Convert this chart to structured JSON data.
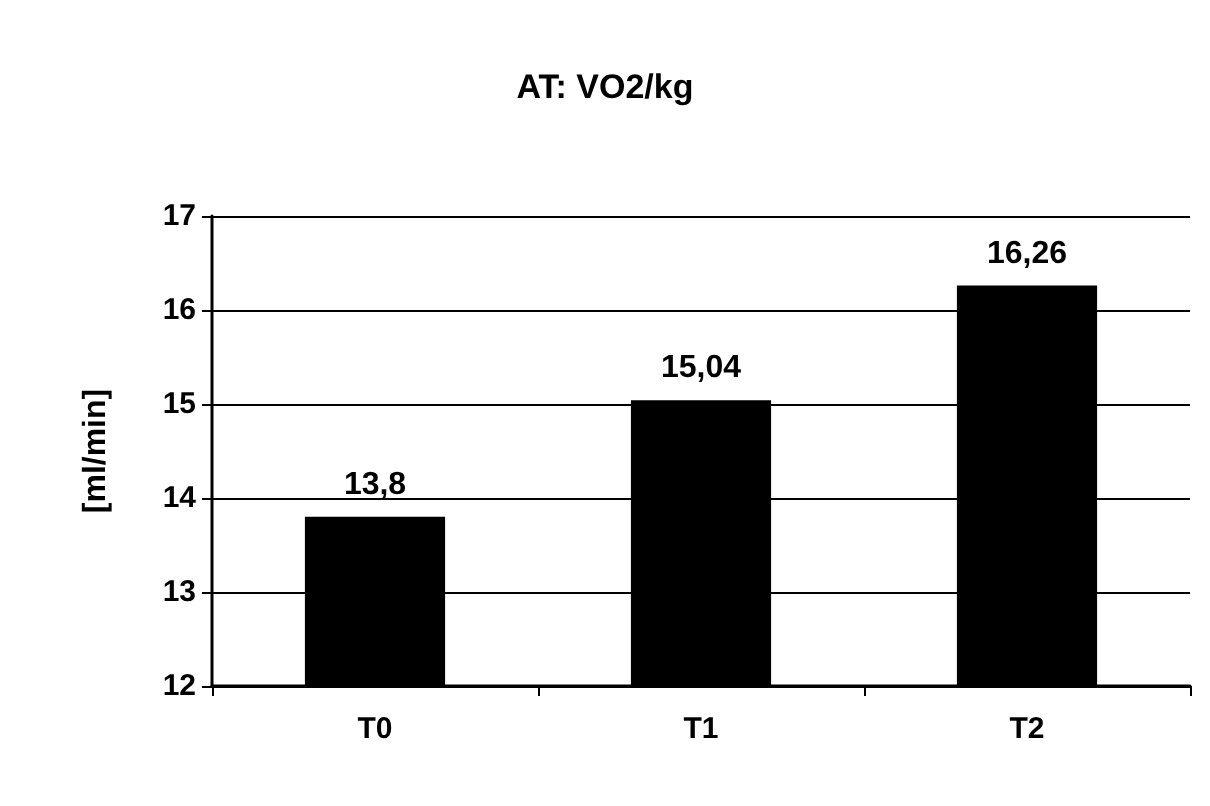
{
  "chart_data": {
    "type": "bar",
    "title": "AT: VO2/kg",
    "ylabel": "[ml/min]",
    "categories": [
      "T0",
      "T1",
      "T2"
    ],
    "values": [
      13.8,
      15.04,
      16.26
    ],
    "value_labels": [
      "13,8",
      "15,04",
      "16,26"
    ],
    "color": "#000000",
    "ylim": [
      12,
      17
    ],
    "yticks": [
      12,
      13,
      14,
      15,
      16,
      17
    ],
    "grid": "y"
  }
}
